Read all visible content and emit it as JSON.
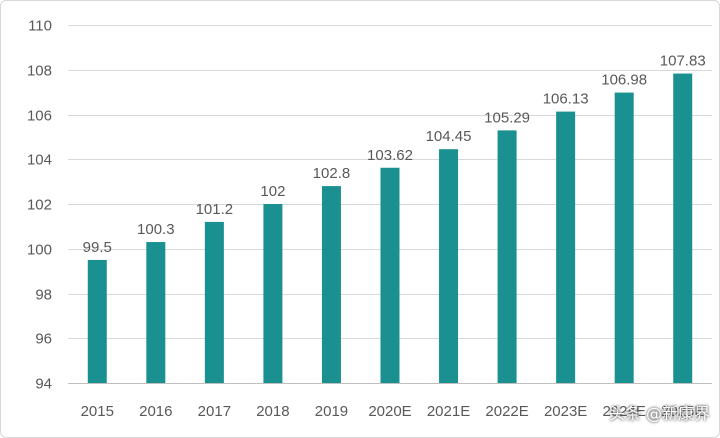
{
  "chart_data": {
    "type": "bar",
    "categories": [
      "2015",
      "2016",
      "2017",
      "2018",
      "2019",
      "2020E",
      "2021E",
      "2022E",
      "2023E",
      "2024E",
      "2025E"
    ],
    "values": [
      99.5,
      100.3,
      101.2,
      102,
      102.8,
      103.62,
      104.45,
      105.29,
      106.13,
      106.98,
      107.83
    ],
    "data_labels": [
      "99.5",
      "100.3",
      "101.2",
      "102",
      "102.8",
      "103.62",
      "104.45",
      "105.29",
      "106.13",
      "106.98",
      "107.83"
    ],
    "yticks": [
      94,
      96,
      98,
      100,
      102,
      104,
      106,
      108,
      110
    ],
    "ylim": [
      94,
      110
    ],
    "grid": true,
    "legend": "none",
    "bar_color": "#1a9090",
    "grid_color": "#d9d9d9",
    "label_color": "#595959"
  },
  "watermark": "头条 @新康界"
}
